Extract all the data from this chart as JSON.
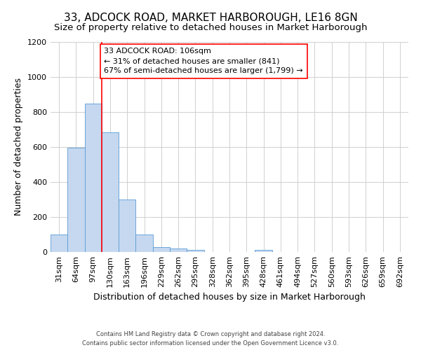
{
  "title": "33, ADCOCK ROAD, MARKET HARBOROUGH, LE16 8GN",
  "subtitle": "Size of property relative to detached houses in Market Harborough",
  "xlabel": "Distribution of detached houses by size in Market Harborough",
  "ylabel": "Number of detached properties",
  "categories": [
    "31sqm",
    "64sqm",
    "97sqm",
    "130sqm",
    "163sqm",
    "196sqm",
    "229sqm",
    "262sqm",
    "295sqm",
    "328sqm",
    "362sqm",
    "395sqm",
    "428sqm",
    "461sqm",
    "494sqm",
    "527sqm",
    "560sqm",
    "593sqm",
    "626sqm",
    "659sqm",
    "692sqm"
  ],
  "values": [
    100,
    595,
    850,
    685,
    300,
    100,
    30,
    22,
    12,
    0,
    0,
    0,
    12,
    0,
    0,
    0,
    0,
    0,
    0,
    0,
    0
  ],
  "bar_color": "#c5d8f0",
  "bar_edge_color": "#5b9bd5",
  "grid_color": "#d0d0d0",
  "vline_x": 2.5,
  "vline_color": "red",
  "annotation_text": "33 ADCOCK ROAD: 106sqm\n← 31% of detached houses are smaller (841)\n67% of semi-detached houses are larger (1,799) →",
  "annotation_box_color": "white",
  "annotation_box_edge": "red",
  "ylim": [
    0,
    1200
  ],
  "yticks": [
    0,
    200,
    400,
    600,
    800,
    1000,
    1200
  ],
  "footer_line1": "Contains HM Land Registry data © Crown copyright and database right 2024.",
  "footer_line2": "Contains public sector information licensed under the Open Government Licence v3.0.",
  "title_fontsize": 11,
  "subtitle_fontsize": 9.5,
  "xlabel_fontsize": 9,
  "ylabel_fontsize": 9,
  "tick_fontsize": 8,
  "annotation_fontsize": 8,
  "footer_fontsize": 6
}
